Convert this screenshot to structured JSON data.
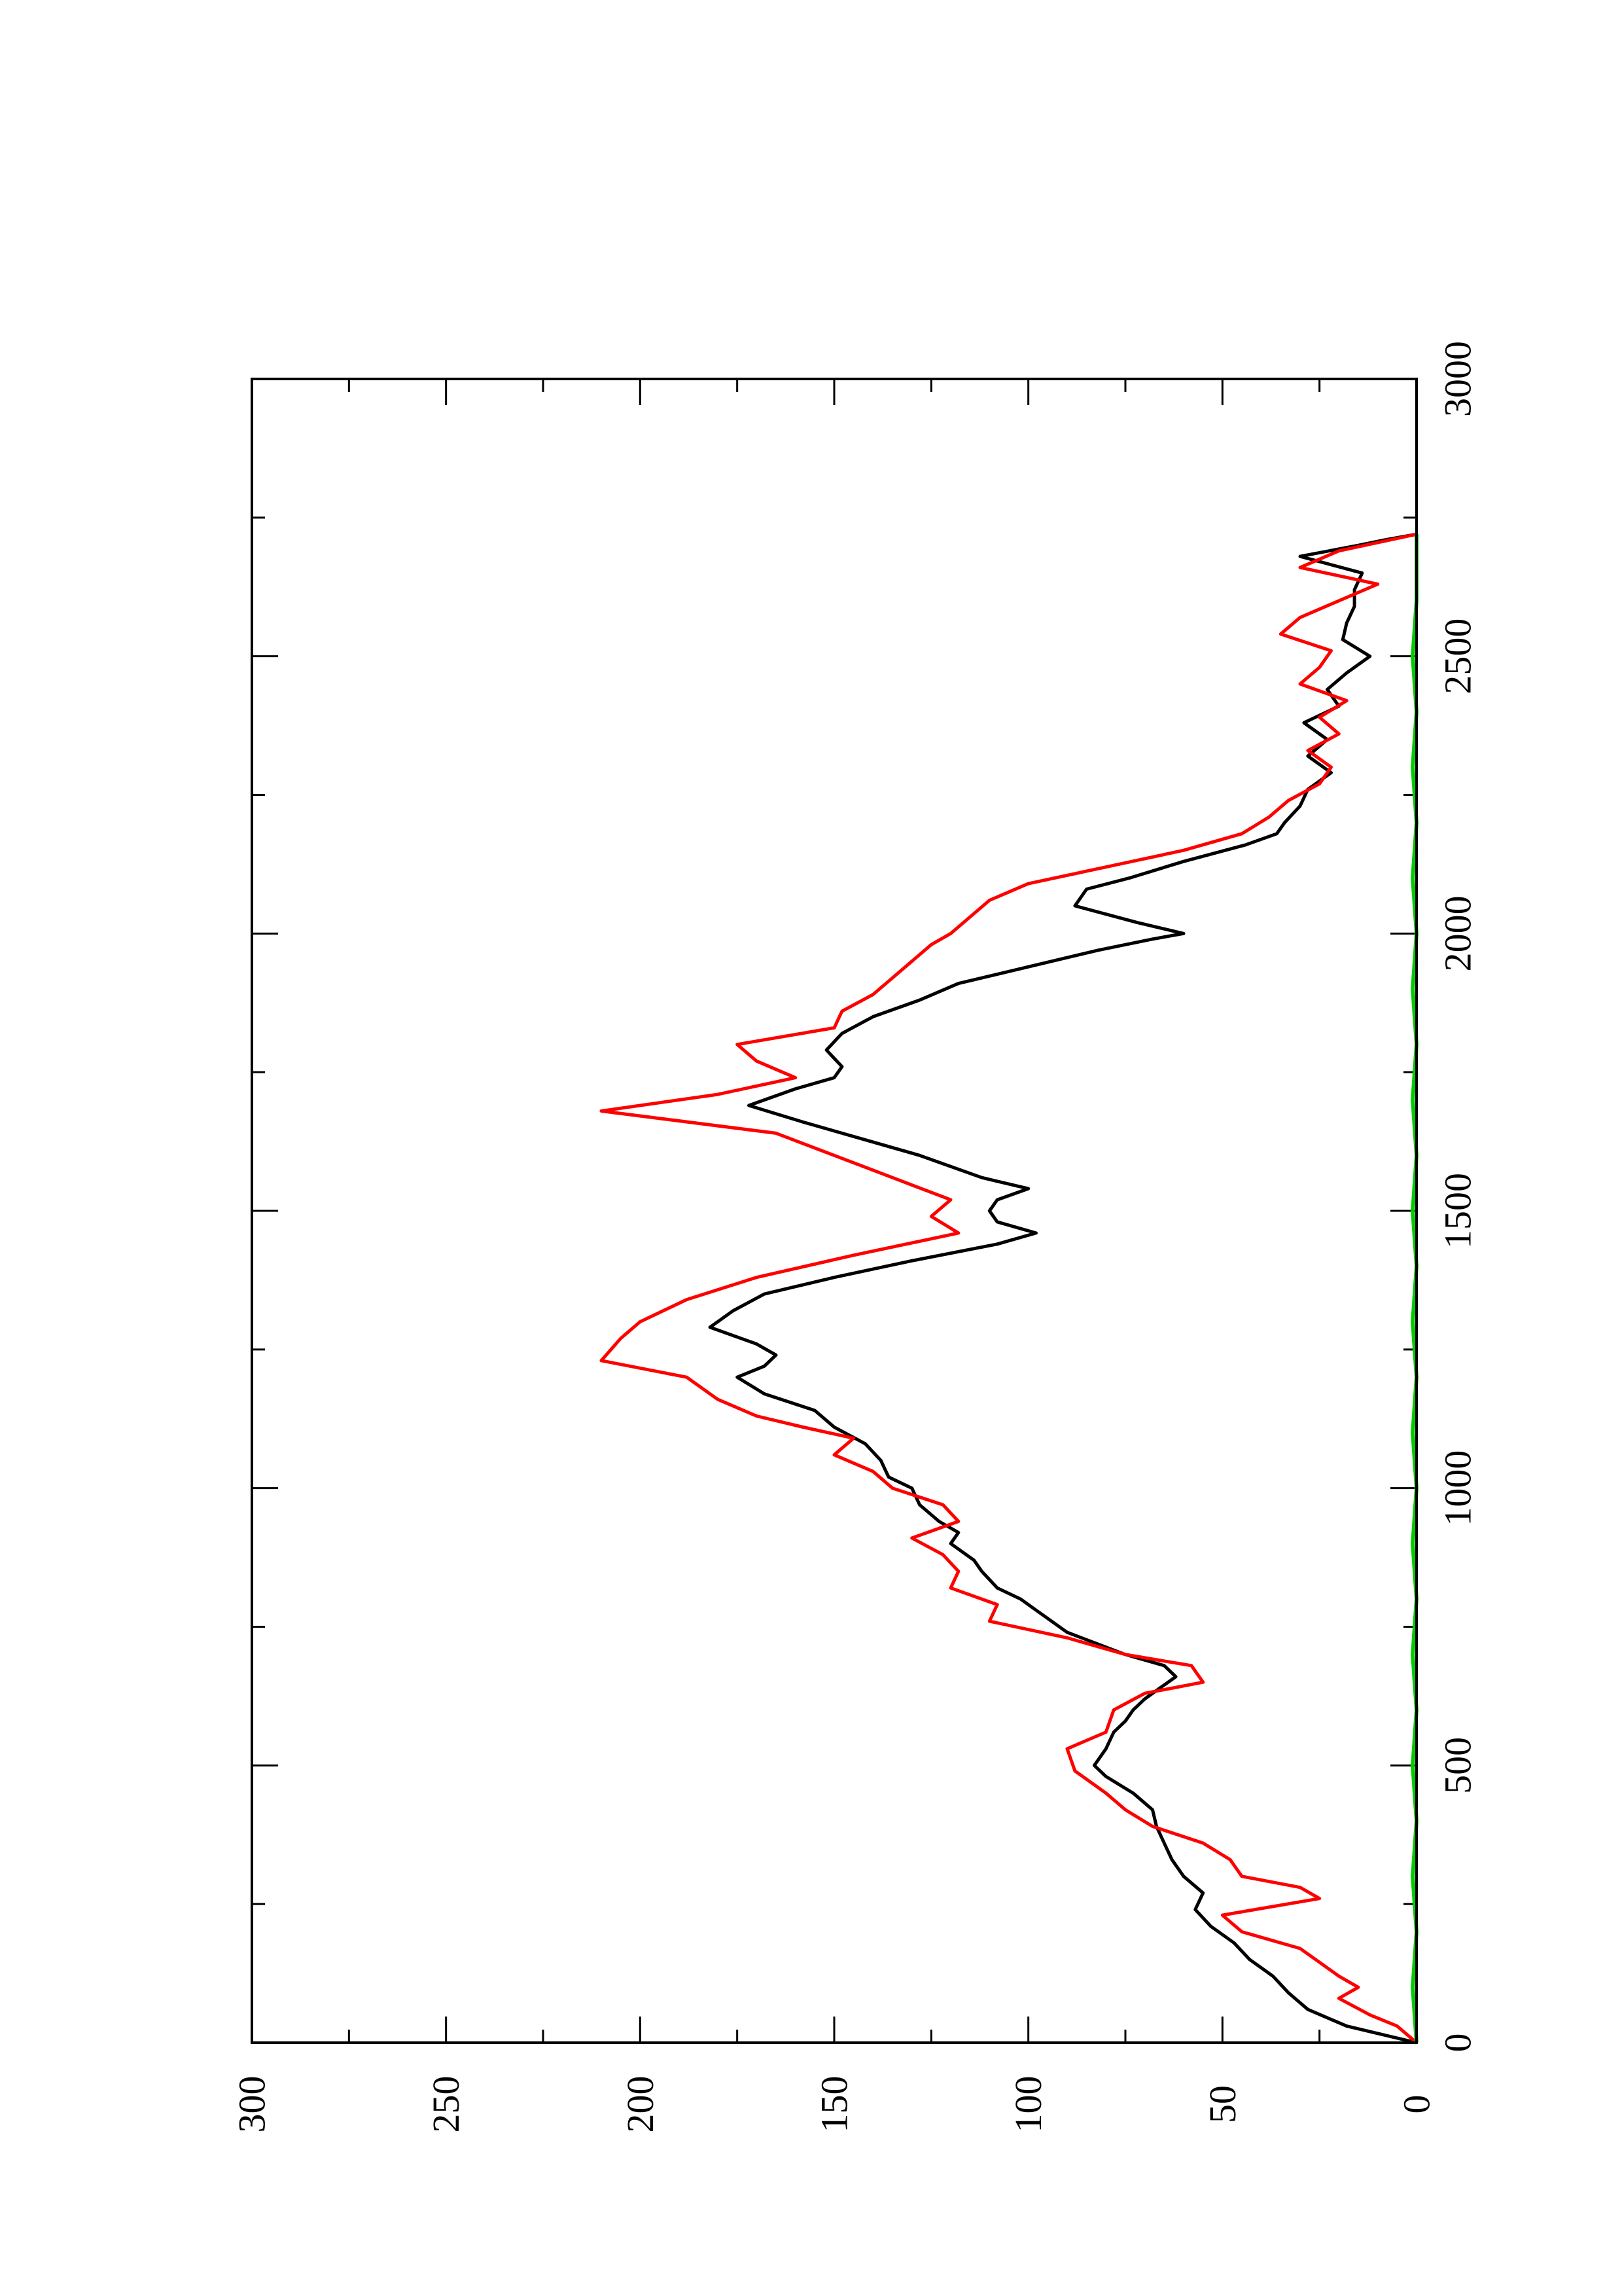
{
  "chart_data": {
    "type": "line",
    "orientation": "rotated 90 degrees counter-clockwise",
    "title": "",
    "xlabel": "",
    "ylabel": "",
    "xlim": [
      0,
      3000
    ],
    "ylim": [
      0,
      300
    ],
    "x_ticks": [
      "0",
      "500",
      "1000",
      "1500",
      "2000",
      "2500",
      "3000"
    ],
    "y_ticks": [
      "0",
      "50",
      "100",
      "150",
      "200",
      "250",
      "300"
    ],
    "grid": false,
    "legend": "none",
    "series": [
      {
        "color": "#000000",
        "points": [
          [
            0,
            0
          ],
          [
            30,
            18
          ],
          [
            60,
            28
          ],
          [
            90,
            33
          ],
          [
            120,
            37
          ],
          [
            150,
            43
          ],
          [
            180,
            47
          ],
          [
            210,
            53
          ],
          [
            240,
            57
          ],
          [
            270,
            55
          ],
          [
            300,
            60
          ],
          [
            330,
            63
          ],
          [
            360,
            65
          ],
          [
            390,
            67
          ],
          [
            420,
            68
          ],
          [
            450,
            73
          ],
          [
            480,
            80
          ],
          [
            500,
            83
          ],
          [
            530,
            80
          ],
          [
            560,
            78
          ],
          [
            580,
            75
          ],
          [
            600,
            73
          ],
          [
            620,
            70
          ],
          [
            640,
            66
          ],
          [
            660,
            62
          ],
          [
            680,
            65
          ],
          [
            700,
            75
          ],
          [
            740,
            90
          ],
          [
            780,
            98
          ],
          [
            800,
            102
          ],
          [
            820,
            108
          ],
          [
            850,
            112
          ],
          [
            870,
            114
          ],
          [
            900,
            120
          ],
          [
            920,
            118
          ],
          [
            940,
            123
          ],
          [
            970,
            128
          ],
          [
            1000,
            130
          ],
          [
            1020,
            136
          ],
          [
            1050,
            138
          ],
          [
            1080,
            142
          ],
          [
            1110,
            150
          ],
          [
            1140,
            155
          ],
          [
            1170,
            168
          ],
          [
            1200,
            175
          ],
          [
            1220,
            168
          ],
          [
            1240,
            165
          ],
          [
            1260,
            170
          ],
          [
            1290,
            182
          ],
          [
            1320,
            176
          ],
          [
            1350,
            168
          ],
          [
            1380,
            150
          ],
          [
            1410,
            130
          ],
          [
            1440,
            108
          ],
          [
            1460,
            98
          ],
          [
            1480,
            108
          ],
          [
            1500,
            110
          ],
          [
            1520,
            108
          ],
          [
            1540,
            100
          ],
          [
            1560,
            112
          ],
          [
            1600,
            128
          ],
          [
            1620,
            138
          ],
          [
            1660,
            158
          ],
          [
            1690,
            172
          ],
          [
            1720,
            160
          ],
          [
            1740,
            150
          ],
          [
            1760,
            148
          ],
          [
            1790,
            152
          ],
          [
            1820,
            148
          ],
          [
            1850,
            140
          ],
          [
            1880,
            128
          ],
          [
            1910,
            118
          ],
          [
            1940,
            100
          ],
          [
            1970,
            82
          ],
          [
            1990,
            68
          ],
          [
            2000,
            60
          ],
          [
            2020,
            72
          ],
          [
            2050,
            88
          ],
          [
            2080,
            85
          ],
          [
            2100,
            74
          ],
          [
            2130,
            60
          ],
          [
            2160,
            44
          ],
          [
            2180,
            36
          ],
          [
            2200,
            34
          ],
          [
            2230,
            30
          ],
          [
            2260,
            28
          ],
          [
            2290,
            22
          ],
          [
            2320,
            28
          ],
          [
            2350,
            23
          ],
          [
            2380,
            29
          ],
          [
            2410,
            20
          ],
          [
            2440,
            23
          ],
          [
            2470,
            18
          ],
          [
            2500,
            12
          ],
          [
            2530,
            19
          ],
          [
            2560,
            18
          ],
          [
            2590,
            16
          ],
          [
            2620,
            16
          ],
          [
            2650,
            14
          ],
          [
            2680,
            30
          ],
          [
            2700,
            15
          ],
          [
            2710,
            8
          ],
          [
            2720,
            0
          ]
        ]
      },
      {
        "color": "#ff0000",
        "points": [
          [
            0,
            0
          ],
          [
            30,
            5
          ],
          [
            50,
            12
          ],
          [
            80,
            20
          ],
          [
            100,
            15
          ],
          [
            120,
            20
          ],
          [
            150,
            26
          ],
          [
            170,
            30
          ],
          [
            200,
            45
          ],
          [
            230,
            50
          ],
          [
            260,
            25
          ],
          [
            280,
            30
          ],
          [
            300,
            45
          ],
          [
            330,
            48
          ],
          [
            360,
            55
          ],
          [
            390,
            68
          ],
          [
            420,
            75
          ],
          [
            450,
            80
          ],
          [
            490,
            88
          ],
          [
            530,
            90
          ],
          [
            560,
            80
          ],
          [
            600,
            78
          ],
          [
            630,
            70
          ],
          [
            650,
            55
          ],
          [
            680,
            58
          ],
          [
            700,
            75
          ],
          [
            730,
            90
          ],
          [
            760,
            110
          ],
          [
            790,
            108
          ],
          [
            820,
            120
          ],
          [
            850,
            118
          ],
          [
            880,
            122
          ],
          [
            910,
            130
          ],
          [
            940,
            118
          ],
          [
            970,
            122
          ],
          [
            1000,
            135
          ],
          [
            1030,
            140
          ],
          [
            1060,
            150
          ],
          [
            1090,
            145
          ],
          [
            1110,
            158
          ],
          [
            1130,
            170
          ],
          [
            1160,
            180
          ],
          [
            1200,
            188
          ],
          [
            1230,
            210
          ],
          [
            1270,
            205
          ],
          [
            1300,
            200
          ],
          [
            1340,
            188
          ],
          [
            1380,
            170
          ],
          [
            1420,
            145
          ],
          [
            1460,
            118
          ],
          [
            1490,
            125
          ],
          [
            1520,
            120
          ],
          [
            1560,
            135
          ],
          [
            1600,
            150
          ],
          [
            1640,
            165
          ],
          [
            1680,
            210
          ],
          [
            1710,
            180
          ],
          [
            1740,
            160
          ],
          [
            1770,
            170
          ],
          [
            1800,
            175
          ],
          [
            1830,
            150
          ],
          [
            1860,
            148
          ],
          [
            1890,
            140
          ],
          [
            1920,
            135
          ],
          [
            1950,
            130
          ],
          [
            1980,
            125
          ],
          [
            2000,
            120
          ],
          [
            2030,
            115
          ],
          [
            2060,
            110
          ],
          [
            2090,
            100
          ],
          [
            2120,
            80
          ],
          [
            2150,
            60
          ],
          [
            2180,
            45
          ],
          [
            2210,
            38
          ],
          [
            2240,
            33
          ],
          [
            2270,
            25
          ],
          [
            2300,
            22
          ],
          [
            2330,
            28
          ],
          [
            2360,
            20
          ],
          [
            2390,
            25
          ],
          [
            2420,
            18
          ],
          [
            2450,
            30
          ],
          [
            2480,
            25
          ],
          [
            2510,
            22
          ],
          [
            2540,
            35
          ],
          [
            2570,
            30
          ],
          [
            2600,
            20
          ],
          [
            2630,
            10
          ],
          [
            2660,
            30
          ],
          [
            2690,
            20
          ],
          [
            2720,
            0
          ]
        ]
      },
      {
        "color": "#00cc00",
        "points": [
          [
            0,
            0
          ],
          [
            100,
            1
          ],
          [
            200,
            0
          ],
          [
            300,
            1
          ],
          [
            400,
            0
          ],
          [
            500,
            1
          ],
          [
            600,
            0
          ],
          [
            700,
            1
          ],
          [
            800,
            0
          ],
          [
            900,
            1
          ],
          [
            1000,
            0
          ],
          [
            1100,
            1
          ],
          [
            1200,
            0
          ],
          [
            1300,
            1
          ],
          [
            1400,
            0
          ],
          [
            1500,
            1
          ],
          [
            1600,
            0
          ],
          [
            1700,
            1
          ],
          [
            1800,
            0
          ],
          [
            1900,
            1
          ],
          [
            2000,
            0
          ],
          [
            2100,
            1
          ],
          [
            2200,
            0
          ],
          [
            2300,
            1
          ],
          [
            2400,
            0
          ],
          [
            2500,
            1
          ],
          [
            2600,
            0
          ],
          [
            2720,
            0
          ]
        ]
      }
    ]
  }
}
